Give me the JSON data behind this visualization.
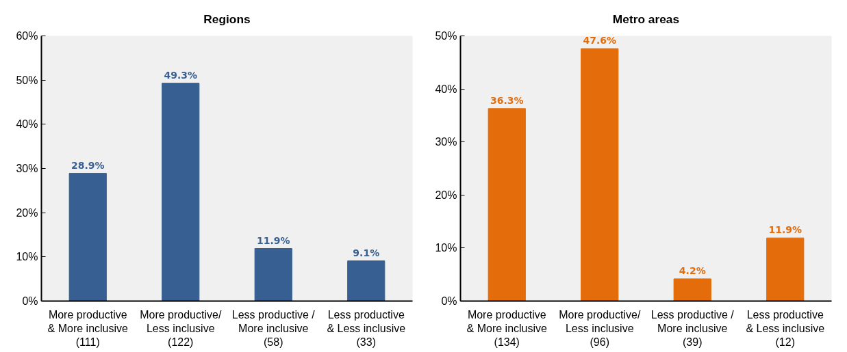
{
  "chart_data": [
    {
      "type": "bar",
      "title": "Regions",
      "categories": [
        "More productive\n& More inclusive\n(111)",
        "More productive/\nLess inclusive\n(122)",
        "Less productive /\nMore inclusive\n(58)",
        "Less productive\n& Less inclusive\n(33)"
      ],
      "values": [
        28.9,
        49.3,
        11.9,
        9.1
      ],
      "value_labels": [
        "28.9%",
        "49.3%",
        "11.9%",
        "9.1%"
      ],
      "color": "#375f92",
      "ylim": [
        0,
        60
      ],
      "yticks": [
        {
          "value": 0,
          "label": "0%"
        },
        {
          "value": 10,
          "label": "10%"
        },
        {
          "value": 20,
          "label": "20%"
        },
        {
          "value": 30,
          "label": "30%"
        },
        {
          "value": 40,
          "label": "40%"
        },
        {
          "value": 50,
          "label": "50%"
        },
        {
          "value": 60,
          "label": "60%"
        }
      ]
    },
    {
      "type": "bar",
      "title": "Metro areas",
      "categories": [
        "More productive\n& More inclusive\n(134)",
        "More productive/\nLess inclusive\n(96)",
        "Less productive /\nMore inclusive\n(39)",
        "Less productive\n& Less inclusive\n(12)"
      ],
      "values": [
        36.3,
        47.6,
        4.2,
        11.9
      ],
      "value_labels": [
        "36.3%",
        "47.6%",
        "4.2%",
        "11.9%"
      ],
      "color": "#e46c0a",
      "ylim": [
        0,
        50
      ],
      "yticks": [
        {
          "value": 0,
          "label": "0%"
        },
        {
          "value": 10,
          "label": "10%"
        },
        {
          "value": 20,
          "label": "20%"
        },
        {
          "value": 30,
          "label": "30%"
        },
        {
          "value": 40,
          "label": "40%"
        },
        {
          "value": 50,
          "label": "50%"
        }
      ]
    }
  ]
}
